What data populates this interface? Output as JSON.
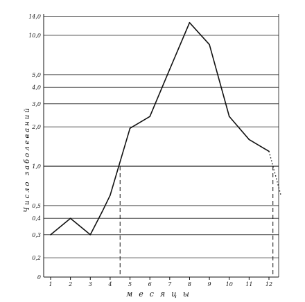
{
  "chart_data": {
    "type": "line",
    "ylabel": "Число заболеваний",
    "xlabel": "месяцы",
    "x_ticks": [
      "1",
      "2",
      "3",
      "4",
      "5",
      "6",
      "7",
      "8",
      "9",
      "10",
      "11",
      "12"
    ],
    "y_ticks": [
      {
        "label": "14,0",
        "value": 14.0
      },
      {
        "label": "10,0",
        "value": 10.0
      },
      {
        "label": "5,0",
        "value": 5.0
      },
      {
        "label": "4,0",
        "value": 4.0
      },
      {
        "label": "3,0",
        "value": 3.0
      },
      {
        "label": "2,0",
        "value": 2.0
      },
      {
        "label": "1,0",
        "value": 1.0
      },
      {
        "label": "0,5",
        "value": 0.5
      },
      {
        "label": "0,4",
        "value": 0.4
      },
      {
        "label": "0,3",
        "value": 0.3
      },
      {
        "label": "0,2",
        "value": 0.2
      },
      {
        "label": "0",
        "value": 0
      }
    ],
    "y_scale": "log",
    "xlim": [
      1,
      12.6
    ],
    "grid": "horizontal",
    "series": [
      {
        "x": [
          1,
          2,
          3,
          3.6,
          4,
          5,
          6,
          7,
          8,
          9,
          10,
          11,
          12
        ],
        "y": [
          0.3,
          0.4,
          0.3,
          0.45,
          0.6,
          1.95,
          2.4,
          5.5,
          12.5,
          8.5,
          2.4,
          1.6,
          1.3
        ]
      }
    ],
    "extrapolation": {
      "x": [
        12,
        12.6
      ],
      "y": [
        1.3,
        0.6
      ]
    },
    "threshold": {
      "y": 1.0,
      "crossings_x": [
        4.5,
        12.2
      ]
    }
  }
}
